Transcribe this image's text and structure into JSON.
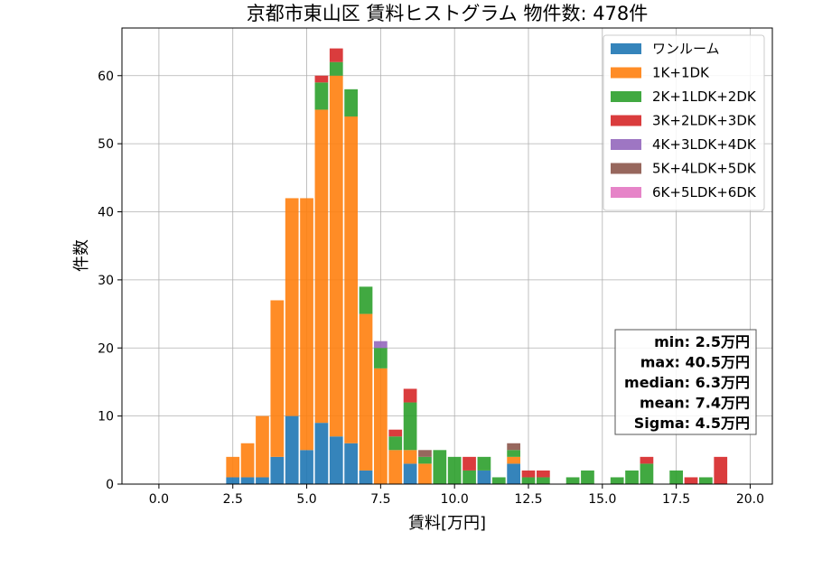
{
  "chart_data": {
    "type": "bar",
    "stacked": true,
    "title": "京都市東山区 賃料ヒストグラム  物件数: 478件",
    "xlabel": "賃料[万円]",
    "ylabel": "件数",
    "xlim": [
      -1.25,
      20.75
    ],
    "ylim": [
      0,
      67
    ],
    "xticks": [
      0.0,
      2.5,
      5.0,
      7.5,
      10.0,
      12.5,
      15.0,
      17.5,
      20.0
    ],
    "xtick_labels": [
      "0.0",
      "2.5",
      "5.0",
      "7.5",
      "10.0",
      "12.5",
      "15.0",
      "17.5",
      "20.0"
    ],
    "yticks": [
      0,
      10,
      20,
      30,
      40,
      50,
      60
    ],
    "ytick_labels": [
      "0",
      "10",
      "20",
      "30",
      "40",
      "50",
      "60"
    ],
    "grid": true,
    "legend_position": "top-right",
    "bin_width": 0.5,
    "x": [
      2.5,
      3.0,
      3.5,
      4.0,
      4.5,
      5.0,
      5.5,
      6.0,
      6.5,
      7.0,
      7.5,
      8.0,
      8.5,
      9.0,
      9.5,
      10.0,
      10.5,
      11.0,
      11.5,
      12.0,
      12.5,
      13.0,
      13.5,
      14.0,
      14.5,
      15.0,
      15.5,
      16.0,
      16.5,
      17.0,
      17.5,
      18.0,
      18.5,
      19.0,
      19.5
    ],
    "series": [
      {
        "name": "ワンルーム",
        "color": "#1f77b4",
        "values": [
          1,
          1,
          1,
          4,
          10,
          5,
          9,
          7,
          6,
          2,
          0,
          0,
          3,
          0,
          0,
          0,
          0,
          2,
          0,
          3,
          0,
          0,
          0,
          0,
          0,
          0,
          0,
          0,
          0,
          0,
          0,
          0,
          0,
          0,
          0
        ]
      },
      {
        "name": "1K+1DK",
        "color": "#ff7f0e",
        "values": [
          3,
          5,
          9,
          23,
          32,
          37,
          46,
          53,
          48,
          23,
          17,
          5,
          2,
          3,
          0,
          0,
          0,
          0,
          0,
          1,
          0,
          0,
          0,
          0,
          0,
          0,
          0,
          0,
          0,
          0,
          0,
          0,
          0,
          0,
          0
        ]
      },
      {
        "name": "2K+1LDK+2DK",
        "color": "#2ca02c",
        "values": [
          0,
          0,
          0,
          0,
          0,
          0,
          4,
          2,
          4,
          4,
          3,
          2,
          7,
          1,
          5,
          4,
          2,
          2,
          1,
          1,
          1,
          1,
          0,
          1,
          2,
          0,
          1,
          2,
          3,
          0,
          2,
          0,
          1,
          0,
          0
        ]
      },
      {
        "name": "3K+2LDK+3DK",
        "color": "#d62728",
        "values": [
          0,
          0,
          0,
          0,
          0,
          0,
          1,
          2,
          0,
          0,
          0,
          1,
          2,
          0,
          0,
          0,
          2,
          0,
          0,
          0,
          1,
          1,
          0,
          0,
          0,
          0,
          0,
          0,
          1,
          0,
          0,
          1,
          0,
          4,
          0
        ]
      },
      {
        "name": "4K+3LDK+4DK",
        "color": "#9467bd",
        "values": [
          0,
          0,
          0,
          0,
          0,
          0,
          0,
          0,
          0,
          0,
          1,
          0,
          0,
          0,
          0,
          0,
          0,
          0,
          0,
          0,
          0,
          0,
          0,
          0,
          0,
          0,
          0,
          0,
          0,
          0,
          0,
          0,
          0,
          0,
          0
        ]
      },
      {
        "name": "5K+4LDK+5DK",
        "color": "#8c564b",
        "values": [
          0,
          0,
          0,
          0,
          0,
          0,
          0,
          0,
          0,
          0,
          0,
          0,
          0,
          1,
          0,
          0,
          0,
          0,
          0,
          1,
          0,
          0,
          0,
          0,
          0,
          0,
          0,
          0,
          0,
          0,
          0,
          0,
          0,
          0,
          0
        ]
      },
      {
        "name": "6K+5LDK+6DK",
        "color": "#e377c2",
        "values": [
          0,
          0,
          0,
          0,
          0,
          0,
          0,
          0,
          0,
          0,
          0,
          0,
          0,
          0,
          0,
          0,
          0,
          0,
          0,
          0,
          0,
          0,
          0,
          0,
          0,
          0,
          0,
          0,
          0,
          0,
          0,
          0,
          0,
          0,
          0
        ]
      }
    ],
    "stats": [
      "min: 2.5万円",
      "max: 40.5万円",
      "median: 6.3万円",
      "mean: 7.4万円",
      "Sigma: 4.5万円"
    ]
  }
}
